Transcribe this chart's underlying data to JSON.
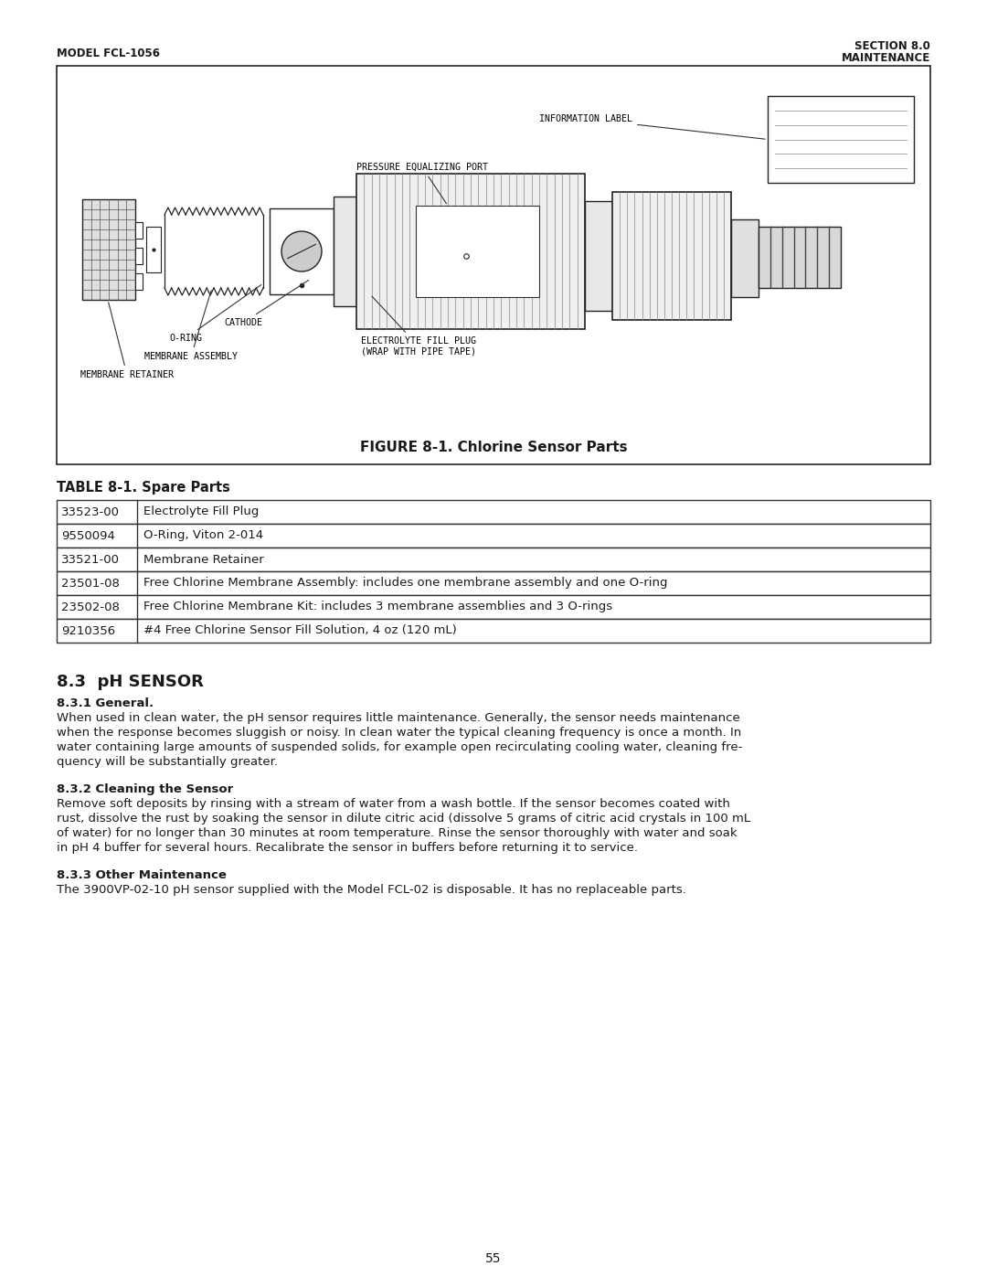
{
  "page_width": 10.8,
  "page_height": 13.97,
  "bg_color": "#ffffff",
  "text_color": "#1a1a1a",
  "header_left": "MODEL FCL-1056",
  "header_right_line1": "SECTION 8.0",
  "header_right_line2": "MAINTENANCE",
  "figure_caption": "FIGURE 8-1. Chlorine Sensor Parts",
  "table_title": "TABLE 8-1. Spare Parts",
  "table_rows": [
    [
      "33523-00",
      "Electrolyte Fill Plug"
    ],
    [
      "9550094",
      "O-Ring, Viton 2-014"
    ],
    [
      "33521-00",
      "Membrane Retainer"
    ],
    [
      "23501-08",
      "Free Chlorine Membrane Assembly: includes one membrane assembly and one O-ring"
    ],
    [
      "23502-08",
      "Free Chlorine Membrane Kit: includes 3 membrane assemblies and 3 O-rings"
    ],
    [
      "9210356",
      "#4 Free Chlorine Sensor Fill Solution, 4 oz (120 mL)"
    ]
  ],
  "section_heading": "8.3  pH SENSOR",
  "subsection1_heading": "8.3.1 General.",
  "subsection1_lines": [
    "When used in clean water, the pH sensor requires little maintenance. Generally, the sensor needs maintenance",
    "when the response becomes sluggish or noisy. In clean water the typical cleaning frequency is once a month. In",
    "water containing large amounts of suspended solids, for example open recirculating cooling water, cleaning fre-",
    "quency will be substantially greater."
  ],
  "subsection2_heading": "8.3.2 Cleaning the Sensor",
  "subsection2_lines": [
    "Remove soft deposits by rinsing with a stream of water from a wash bottle. If the sensor becomes coated with",
    "rust, dissolve the rust by soaking the sensor in dilute citric acid (dissolve 5 grams of citric acid crystals in 100 mL",
    "of water) for no longer than 30 minutes at room temperature. Rinse the sensor thoroughly with water and soak",
    "in pH 4 buffer for several hours. Recalibrate the sensor in buffers before returning it to service."
  ],
  "subsection3_heading": "8.3.3 Other Maintenance",
  "subsection3_lines": [
    "The 3900VP-02-10 pH sensor supplied with the Model FCL-02 is disposable. It has no replaceable parts."
  ],
  "page_number": "55"
}
